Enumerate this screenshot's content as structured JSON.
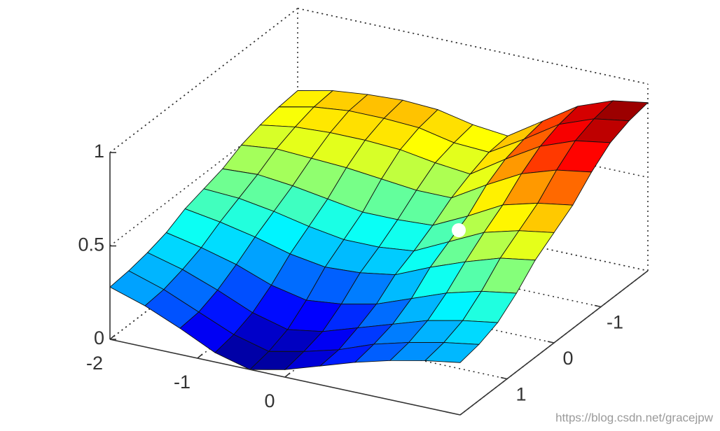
{
  "chart_data": {
    "type": "surface3d",
    "colormap": "jet",
    "grid": true,
    "x": [
      -2,
      -1.6,
      -1.2,
      -0.8,
      -0.4,
      0,
      0.4,
      0.8,
      1.2,
      1.6,
      2
    ],
    "y": [
      -2,
      -1.6,
      -1.2,
      -0.8,
      -0.4,
      0,
      0.4,
      0.8,
      1.2,
      1.6,
      2
    ],
    "z": [
      [
        0.56,
        0.6,
        0.62,
        0.63,
        0.62,
        0.58,
        0.56,
        0.68,
        0.8,
        0.87,
        0.9
      ],
      [
        0.55,
        0.59,
        0.61,
        0.61,
        0.6,
        0.56,
        0.55,
        0.66,
        0.78,
        0.85,
        0.88
      ],
      [
        0.53,
        0.56,
        0.57,
        0.57,
        0.56,
        0.53,
        0.51,
        0.63,
        0.74,
        0.81,
        0.84
      ],
      [
        0.5,
        0.52,
        0.51,
        0.5,
        0.48,
        0.46,
        0.46,
        0.57,
        0.67,
        0.73,
        0.76
      ],
      [
        0.45,
        0.46,
        0.44,
        0.41,
        0.38,
        0.38,
        0.39,
        0.48,
        0.58,
        0.63,
        0.66
      ],
      [
        0.42,
        0.41,
        0.38,
        0.34,
        0.31,
        0.31,
        0.33,
        0.42,
        0.51,
        0.56,
        0.59
      ],
      [
        0.39,
        0.36,
        0.32,
        0.27,
        0.24,
        0.25,
        0.28,
        0.36,
        0.43,
        0.49,
        0.52
      ],
      [
        0.34,
        0.3,
        0.25,
        0.18,
        0.14,
        0.16,
        0.2,
        0.27,
        0.34,
        0.39,
        0.42
      ],
      [
        0.31,
        0.26,
        0.19,
        0.11,
        0.06,
        0.09,
        0.15,
        0.21,
        0.27,
        0.31,
        0.34
      ],
      [
        0.29,
        0.23,
        0.15,
        0.07,
        0.02,
        0.06,
        0.11,
        0.18,
        0.23,
        0.27,
        0.3
      ],
      [
        0.28,
        0.22,
        0.14,
        0.05,
        0.0,
        0.04,
        0.1,
        0.16,
        0.21,
        0.25,
        0.28
      ]
    ],
    "xlim": [
      -2,
      2
    ],
    "ylim": [
      -2,
      2
    ],
    "zlim": [
      0,
      1
    ],
    "xticks": [
      -2,
      -1,
      0
    ],
    "yticks": [
      -1,
      0,
      1
    ],
    "zticks": [
      0,
      0.5,
      1
    ],
    "watermark": "https://blog.csdn.net/gracejpw"
  }
}
